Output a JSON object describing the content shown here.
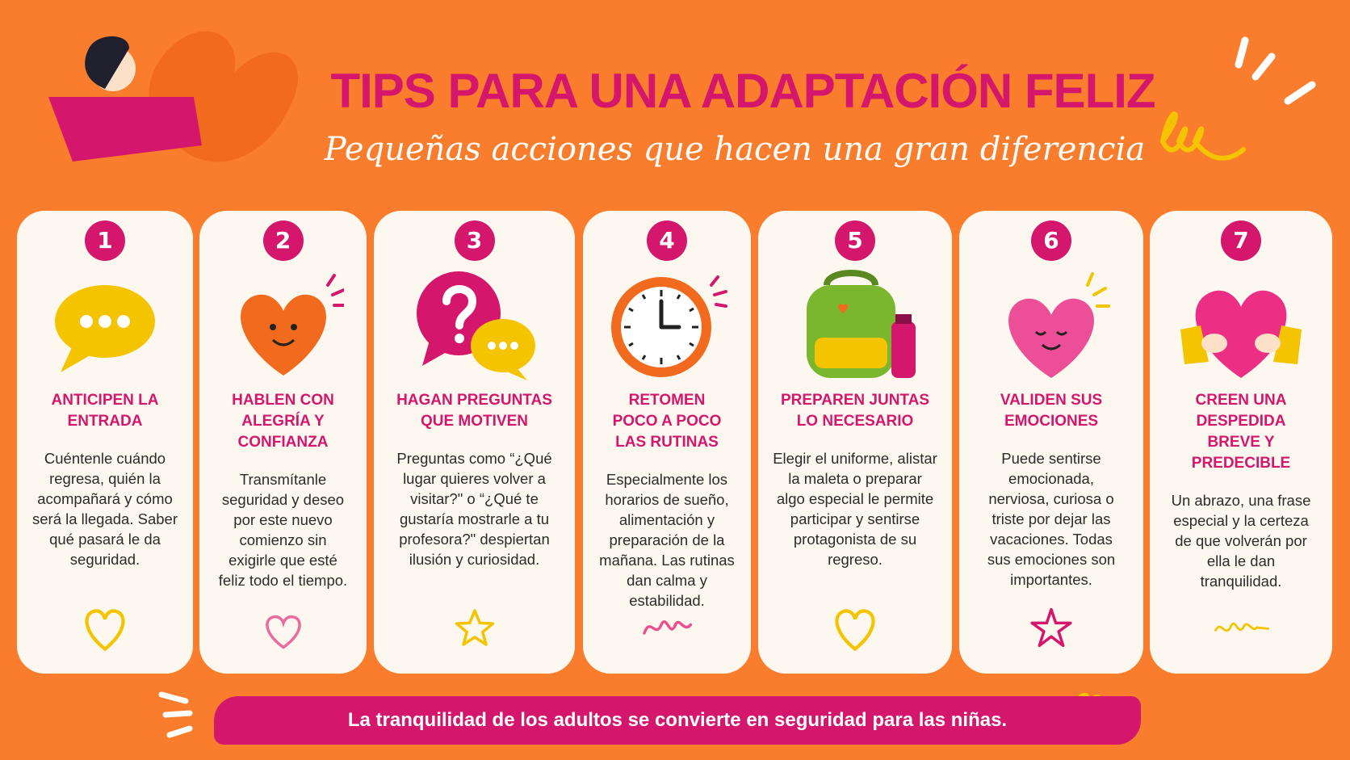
{
  "header": {
    "title": "TIPS PARA UNA ADAPTACIÓN FELIZ",
    "subtitle": "Pequeñas acciones que hacen una gran diferencia"
  },
  "cards": [
    {
      "number": 1,
      "title": "ANTICIPEN LA ENTRADA",
      "body": "Cuéntenle cuándo regresa, quién la acompañará y cómo será la llegada. Saber qué pasará le da seguridad."
    },
    {
      "number": 2,
      "title": "HABLEN CON ALEGRÍA Y CONFIANZA",
      "body": "Transmítanle seguridad y deseo por este nuevo comienzo sin exigirle que esté feliz todo el tiempo."
    },
    {
      "number": 3,
      "title": "HAGAN PREGUNTAS QUE MOTIVEN",
      "body": "Preguntas como “¿Qué lugar quieres volver a visitar?\" o “¿Qué te gustaría mostrarle a tu profesora?\" despiertan ilusión y curiosidad."
    },
    {
      "number": 4,
      "title": "RETOMEN POCO A POCO LAS RUTINAS",
      "body": "Especialmente los horarios de sueño, alimentación y preparación de la mañana. Las rutinas dan calma y estabilidad."
    },
    {
      "number": 5,
      "title": "PREPAREN JUNTAS LO NECESARIO",
      "body": "Elegir el uniforme, alistar la maleta o preparar algo especial le permite participar y sentirse protagonista de su regreso."
    },
    {
      "number": 6,
      "title": "VALIDEN SUS EMOCIONES",
      "body": "Puede sentirse emocionada, nerviosa, curiosa o triste por dejar las vacaciones. Todas sus emociones son importantes."
    },
    {
      "number": 7,
      "title": "CREEN UNA DESPEDIDA BREVE Y PREDECIBLE",
      "body": "Un abrazo, una frase especial y la certeza de que volverán por ella le dan tranquilidad."
    }
  ],
  "footer": {
    "text": "La tranquilidad de los adultos se convierte en seguridad para las niñas."
  }
}
